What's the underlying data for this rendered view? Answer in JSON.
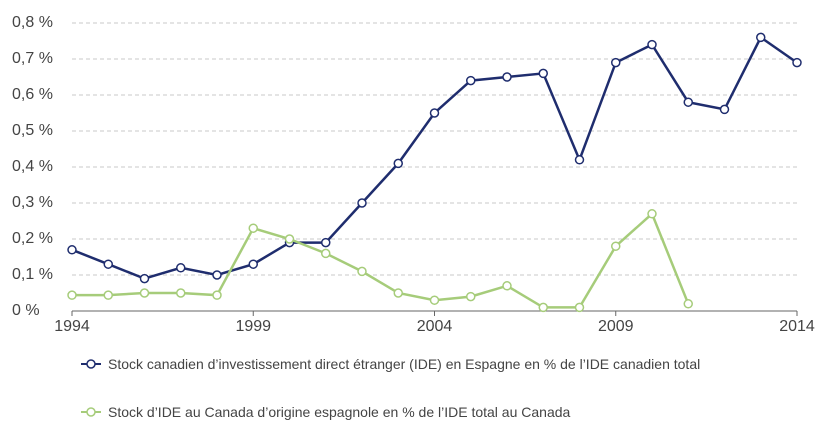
{
  "chart_data": {
    "type": "line",
    "x": [
      1994,
      1995,
      1996,
      1997,
      1998,
      1999,
      2000,
      2001,
      2002,
      2003,
      2004,
      2005,
      2006,
      2007,
      2008,
      2009,
      2010,
      2011,
      2012,
      2013,
      2014
    ],
    "series": [
      {
        "name": "Stock canadien d’investissement direct étranger (IDE) en Espagne en % de l’IDE canadien total",
        "color": "#1f2d6e",
        "values": [
          0.17,
          0.13,
          0.09,
          0.12,
          0.1,
          0.13,
          0.19,
          0.19,
          0.3,
          0.41,
          0.55,
          0.64,
          0.65,
          0.66,
          0.42,
          0.69,
          0.74,
          0.58,
          0.56,
          0.76,
          0.69
        ]
      },
      {
        "name": "Stock d’IDE au Canada d’origine espagnole en % de l’IDE total au Canada",
        "color": "#a6cc7a",
        "values": [
          0.044,
          0.044,
          0.05,
          0.05,
          0.044,
          0.23,
          0.2,
          0.16,
          0.11,
          0.05,
          0.03,
          0.04,
          0.07,
          0.01,
          0.01,
          0.18,
          0.27,
          0.02,
          null,
          null,
          null
        ]
      }
    ],
    "xlim": [
      1994,
      2014
    ],
    "xticks": [
      1994,
      1999,
      2004,
      2009,
      2014
    ],
    "ylim": [
      0,
      0.8
    ],
    "yticks": [
      {
        "value": 0,
        "label": "0 %"
      },
      {
        "value": 0.1,
        "label": "0,1 %"
      },
      {
        "value": 0.2,
        "label": "0,2 %"
      },
      {
        "value": 0.3,
        "label": "0,3 %"
      },
      {
        "value": 0.4,
        "label": "0,4 %"
      },
      {
        "value": 0.5,
        "label": "0,5 %"
      },
      {
        "value": 0.6,
        "label": "0,6 %"
      },
      {
        "value": 0.7,
        "label": "0,7 %"
      },
      {
        "value": 0.8,
        "label": "0,8 %"
      }
    ],
    "grid": true
  }
}
